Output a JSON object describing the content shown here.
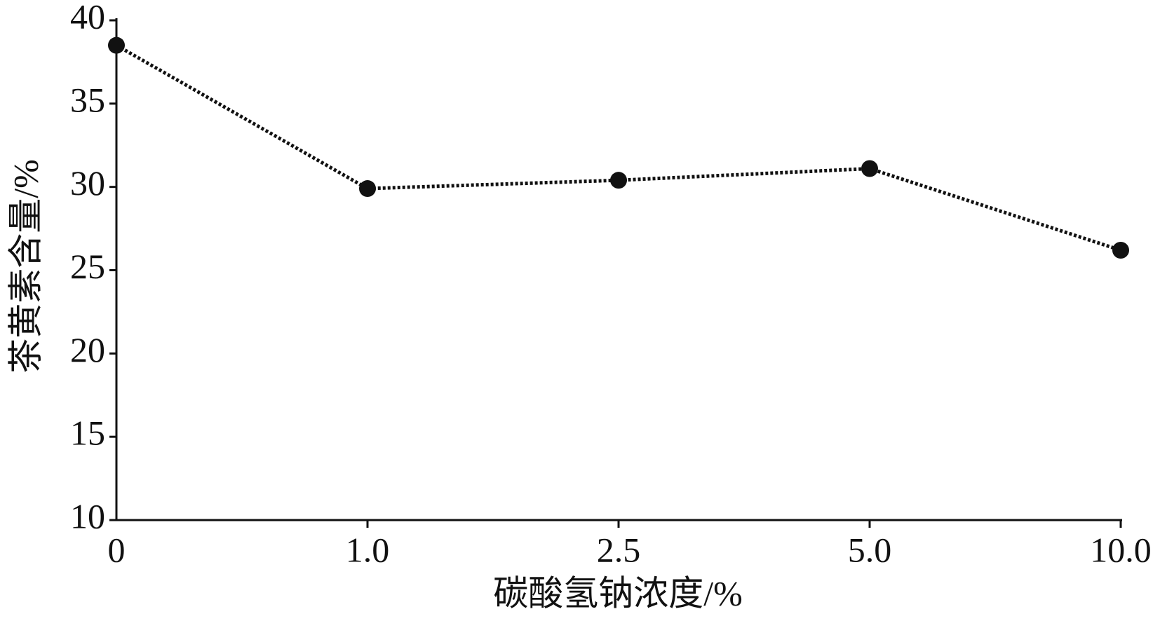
{
  "chart_data": {
    "type": "line",
    "categories": [
      "0",
      "1.0",
      "2.5",
      "5.0",
      "10.0"
    ],
    "values": [
      38.5,
      29.9,
      30.4,
      31.1,
      26.2
    ],
    "color": "#111111",
    "x_label": "碳酸氢钠浓度/%",
    "y_label": "茶黄素含量/%",
    "ylim": [
      10,
      40
    ],
    "yticks": [
      10,
      15,
      20,
      25,
      30,
      35,
      40
    ],
    "grid": false
  }
}
